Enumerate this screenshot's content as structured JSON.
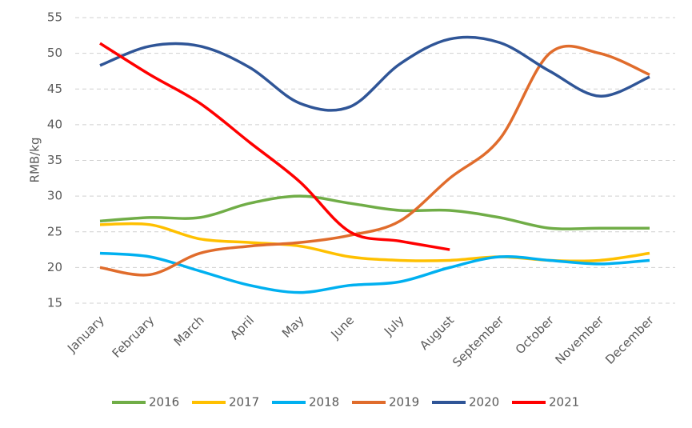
{
  "chart_data": {
    "type": "line",
    "y_label": "RMB/kg",
    "categories": [
      "January",
      "February",
      "March",
      "April",
      "May",
      "June",
      "July",
      "August",
      "September",
      "October",
      "November",
      "December"
    ],
    "series": [
      {
        "name": "2016",
        "color": "#70ad47",
        "values": [
          26.5,
          27,
          27,
          29,
          30,
          29,
          28,
          28,
          27,
          25.5,
          25.5,
          25.5
        ]
      },
      {
        "name": "2017",
        "color": "#ffc000",
        "values": [
          26,
          26,
          24,
          23.5,
          23,
          21.5,
          21,
          21,
          21.5,
          21,
          21,
          22
        ]
      },
      {
        "name": "2018",
        "color": "#00b0f0",
        "values": [
          22,
          21.5,
          19.5,
          17.5,
          16.5,
          17.5,
          18,
          20,
          21.5,
          21,
          20.5,
          21
        ]
      },
      {
        "name": "2019",
        "color": "#e06c2c",
        "values": [
          20,
          19,
          22,
          23,
          23.5,
          24.5,
          26.5,
          32.5,
          38,
          50,
          50,
          47
        ]
      },
      {
        "name": "2020",
        "color": "#2f5597",
        "values": [
          48.3,
          51,
          51,
          48,
          43,
          42.5,
          48.5,
          52,
          51.5,
          47.5,
          44,
          46.7
        ]
      },
      {
        "name": "2021",
        "color": "#ff0000",
        "values": [
          51.4,
          47,
          43,
          37.5,
          32,
          25,
          23.7,
          22.5,
          null,
          null,
          null,
          null
        ]
      }
    ],
    "ylim": [
      15,
      55
    ],
    "yticks": [
      15,
      20,
      25,
      30,
      35,
      40,
      45,
      50,
      55
    ],
    "grid": true,
    "legend": "bottom"
  }
}
